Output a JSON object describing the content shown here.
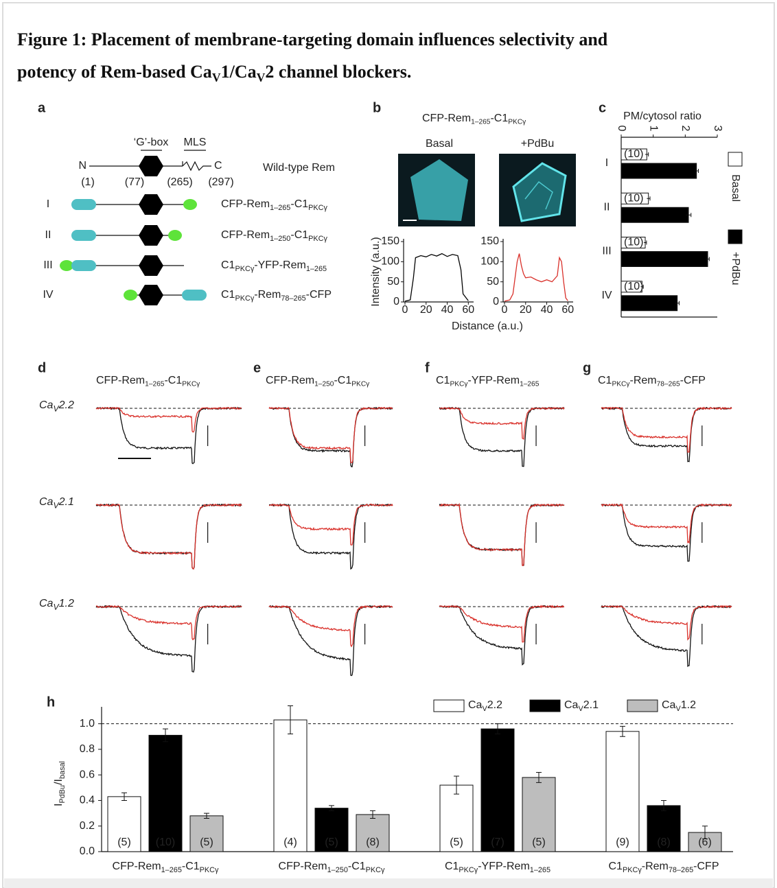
{
  "title": [
    [
      "Figure 1: Placement of membrane-targeting domain influences selectivity and"
    ],
    [
      "potency of Rem-based Ca",
      "V",
      "1/Ca",
      "V",
      "2 channel blockers."
    ]
  ],
  "panel_a": {
    "letter": "a",
    "wild_type": {
      "n": "N",
      "c": "C",
      "g_box": "‘G’-box",
      "mls": "MLS",
      "positions": [
        "(1)",
        "(77)",
        "(265)",
        "(297)"
      ],
      "label": "Wild-type Rem"
    },
    "constructs": [
      {
        "id": "I",
        "label": [
          "CFP-Rem",
          "1–265",
          "-C1",
          "PKCγ"
        ]
      },
      {
        "id": "II",
        "label": [
          "CFP-Rem",
          "1–250",
          "-C1",
          "PKCγ"
        ]
      },
      {
        "id": "III",
        "label": [
          "C1",
          "PKCγ",
          "-YFP-Rem",
          "1–265"
        ]
      },
      {
        "id": "IV",
        "label": [
          "C1",
          "PKCγ",
          "-Rem",
          "78–265",
          "-CFP"
        ]
      }
    ]
  },
  "panel_b": {
    "letter": "b",
    "title": [
      "CFP-Rem",
      "1–265",
      "-C1",
      "PKCγ"
    ],
    "conditions": [
      "Basal",
      "+PdBu"
    ]
  },
  "traces": {
    "panels": [
      {
        "letter": "d",
        "label": [
          "CFP-Rem",
          "1–265",
          "-C1",
          "PKCγ"
        ]
      },
      {
        "letter": "e",
        "label": [
          "CFP-Rem",
          "1–250",
          "-C1",
          "PKCγ"
        ]
      },
      {
        "letter": "f",
        "label": [
          "C1",
          "PKCγ",
          "-YFP-Rem",
          "1–265"
        ]
      },
      {
        "letter": "g",
        "label": [
          "C1",
          "PKCγ",
          "-Rem",
          "78–265",
          "-CFP"
        ]
      }
    ],
    "rows": [
      [
        "Ca",
        "V",
        "2.2"
      ],
      [
        "Ca",
        "V",
        "2.1"
      ],
      [
        "Ca",
        "V",
        "1.2"
      ]
    ]
  },
  "chart_data": [
    {
      "type": "line",
      "ylabel": "Intensity (a.u.)",
      "xlabel": "Distance (a.u.)",
      "xlim": [
        0,
        65
      ],
      "xticks": [
        0,
        20,
        40,
        60
      ],
      "ylim": [
        0,
        150
      ],
      "yticks": [
        0,
        50,
        100,
        150
      ],
      "x": [
        0,
        5,
        8,
        10,
        15,
        20,
        25,
        30,
        35,
        40,
        45,
        50,
        53,
        55,
        60
      ],
      "values": [
        2,
        5,
        60,
        110,
        115,
        112,
        118,
        114,
        120,
        113,
        118,
        115,
        80,
        20,
        3
      ],
      "color": "#000000"
    },
    {
      "type": "line",
      "xlim": [
        0,
        65
      ],
      "xticks": [
        0,
        20,
        40,
        60
      ],
      "ylim": [
        0,
        150
      ],
      "yticks": [
        0,
        50,
        100,
        150
      ],
      "x": [
        0,
        5,
        8,
        10,
        12,
        14,
        16,
        18,
        20,
        25,
        30,
        35,
        40,
        45,
        50,
        52,
        54,
        56,
        58,
        60
      ],
      "values": [
        2,
        5,
        20,
        60,
        100,
        120,
        90,
        70,
        60,
        62,
        55,
        50,
        55,
        50,
        65,
        110,
        100,
        50,
        10,
        3
      ],
      "color": "#d9302a"
    },
    {
      "type": "bar",
      "panel": "c",
      "orientation": "horizontal",
      "xlabel": "PM/cytosol ratio",
      "xlim": [
        0,
        3
      ],
      "xticks": [
        0,
        1,
        2,
        3
      ],
      "categories": [
        "I",
        "II",
        "III",
        "IV"
      ],
      "series": [
        {
          "name": "Basal",
          "color": "#ffffff",
          "values": [
            0.8,
            0.85,
            0.75,
            0.65
          ],
          "errors": [
            0.05,
            0.05,
            0.04,
            0.04
          ],
          "n_labels": [
            "(10)",
            "(10)",
            "(10)",
            "(10)"
          ]
        },
        {
          "name": "+PdBu",
          "color": "#000000",
          "values": [
            2.35,
            2.1,
            2.7,
            1.75
          ],
          "errors": [
            0.06,
            0.08,
            0.05,
            0.06
          ]
        }
      ]
    },
    {
      "type": "bar",
      "panel": "h",
      "ylabel": [
        "I",
        "PdBu",
        "/I",
        "basal"
      ],
      "ylim": [
        0,
        1.1
      ],
      "yticks": [
        {
          "value": 0,
          "label": "0.0"
        },
        0.2,
        0.4,
        0.6,
        0.8,
        {
          "value": 1,
          "label": "1.0"
        }
      ],
      "reference_line": 1,
      "categories": [
        [
          "CFP-Rem",
          "1–265",
          "-C1",
          "PKCγ"
        ],
        [
          "CFP-Rem",
          "1–250",
          "-C1",
          "PKCγ"
        ],
        [
          "C1",
          "PKCγ",
          "-YFP-Rem",
          "1–265"
        ],
        [
          "C1",
          "PKCγ",
          "-Rem",
          "78–265",
          "-CFP"
        ]
      ],
      "series": [
        {
          "name": [
            "Ca",
            "V",
            "2.2"
          ],
          "color": "#ffffff",
          "values": [
            0.43,
            1.03,
            0.52,
            0.94
          ],
          "errors": [
            0.03,
            0.11,
            0.07,
            0.04
          ],
          "n_labels": [
            "(5)",
            "(4)",
            "(5)",
            "(9)"
          ]
        },
        {
          "name": [
            "Ca",
            "V",
            "2.1"
          ],
          "color": "#000000",
          "values": [
            0.91,
            0.34,
            0.96,
            0.36
          ],
          "errors": [
            0.05,
            0.02,
            0.04,
            0.04
          ],
          "n_labels": [
            "(10)",
            "(5)",
            "(7)",
            "(8)"
          ]
        },
        {
          "name": [
            "Ca",
            "V",
            "1.2"
          ],
          "color": "#bdbdbd",
          "values": [
            0.28,
            0.29,
            0.58,
            0.15
          ],
          "errors": [
            0.02,
            0.03,
            0.04,
            0.05
          ],
          "n_labels": [
            "(5)",
            "(8)",
            "(5)",
            "(6)"
          ]
        }
      ]
    }
  ]
}
